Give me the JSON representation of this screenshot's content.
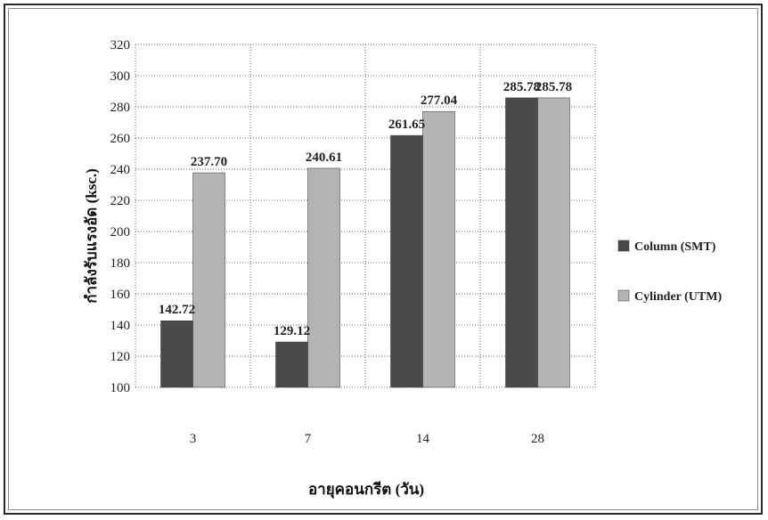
{
  "chart_data": {
    "type": "bar",
    "title": "",
    "xlabel": "อายุคอนกรีต (วัน)",
    "ylabel": "กำลังรับแรงอัด (ksc.)",
    "categories": [
      "3",
      "7",
      "14",
      "28"
    ],
    "ylim": [
      100,
      320
    ],
    "yticks": [
      100,
      120,
      140,
      160,
      180,
      200,
      220,
      240,
      260,
      280,
      300,
      320
    ],
    "grid": true,
    "legend_position": "right",
    "series": [
      {
        "name": "Column (SMT)",
        "values": [
          142.72,
          129.12,
          261.65,
          285.78
        ],
        "labels": [
          "142.72",
          "129.12",
          "261.65",
          "285.78"
        ],
        "color": "#4a4a4a"
      },
      {
        "name": "Cylinder (UTM)",
        "values": [
          237.7,
          240.61,
          277.04,
          285.78
        ],
        "labels": [
          "237.70",
          "240.61",
          "277.04",
          "285.78"
        ],
        "color": "#b4b4b4"
      }
    ]
  }
}
